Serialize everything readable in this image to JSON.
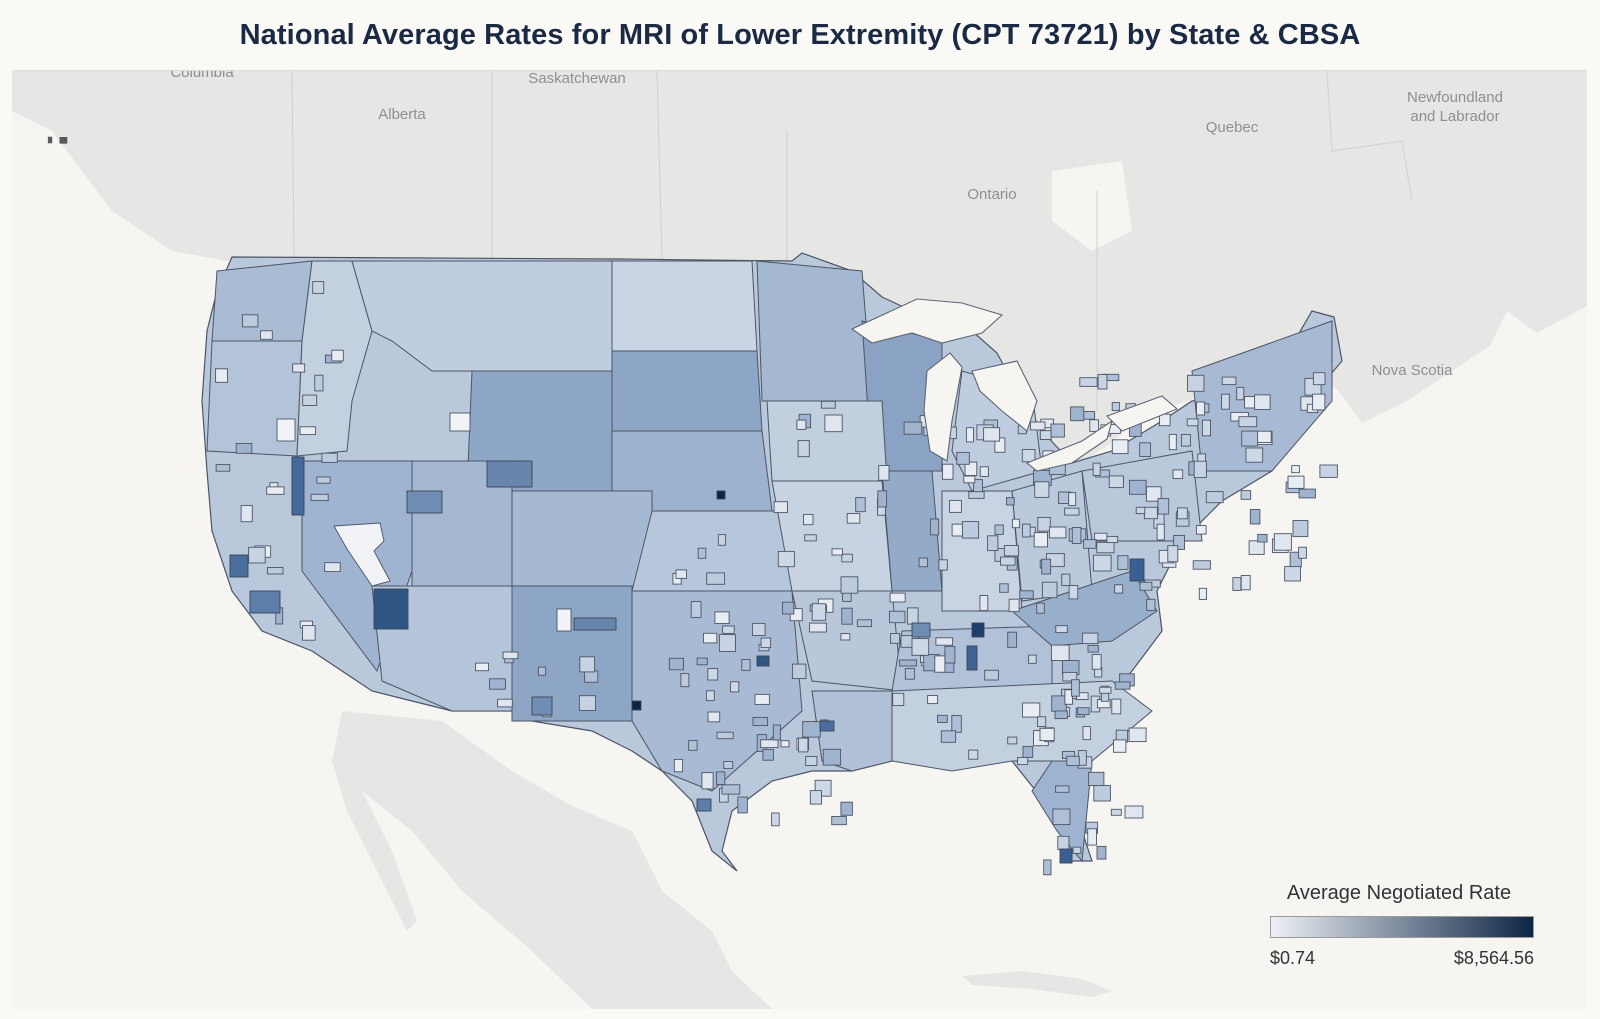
{
  "title": "National Average Rates for MRI of Lower Extremity (CPT 73721) by State & CBSA",
  "map_labels": {
    "columbia": "Columbia",
    "saskatchewan": "Saskatchewan",
    "alberta": "Alberta",
    "quebec": "Quebec",
    "newfoundland": "Newfoundland\nand Labrador",
    "ontario": "Ontario",
    "nova_scotia": "Nova Scotia"
  },
  "legend": {
    "title": "Average Negotiated Rate",
    "min_label": "$0.74",
    "max_label": "$8,564.56",
    "min_value": 0.74,
    "max_value": 8564.56,
    "color_low": "#eef1f5",
    "color_high": "#0c2545"
  },
  "colors": {
    "background": "#fbf9f6",
    "land": "#e6e6e4",
    "water": "#f7f5f2",
    "border": "#4c5565"
  }
}
